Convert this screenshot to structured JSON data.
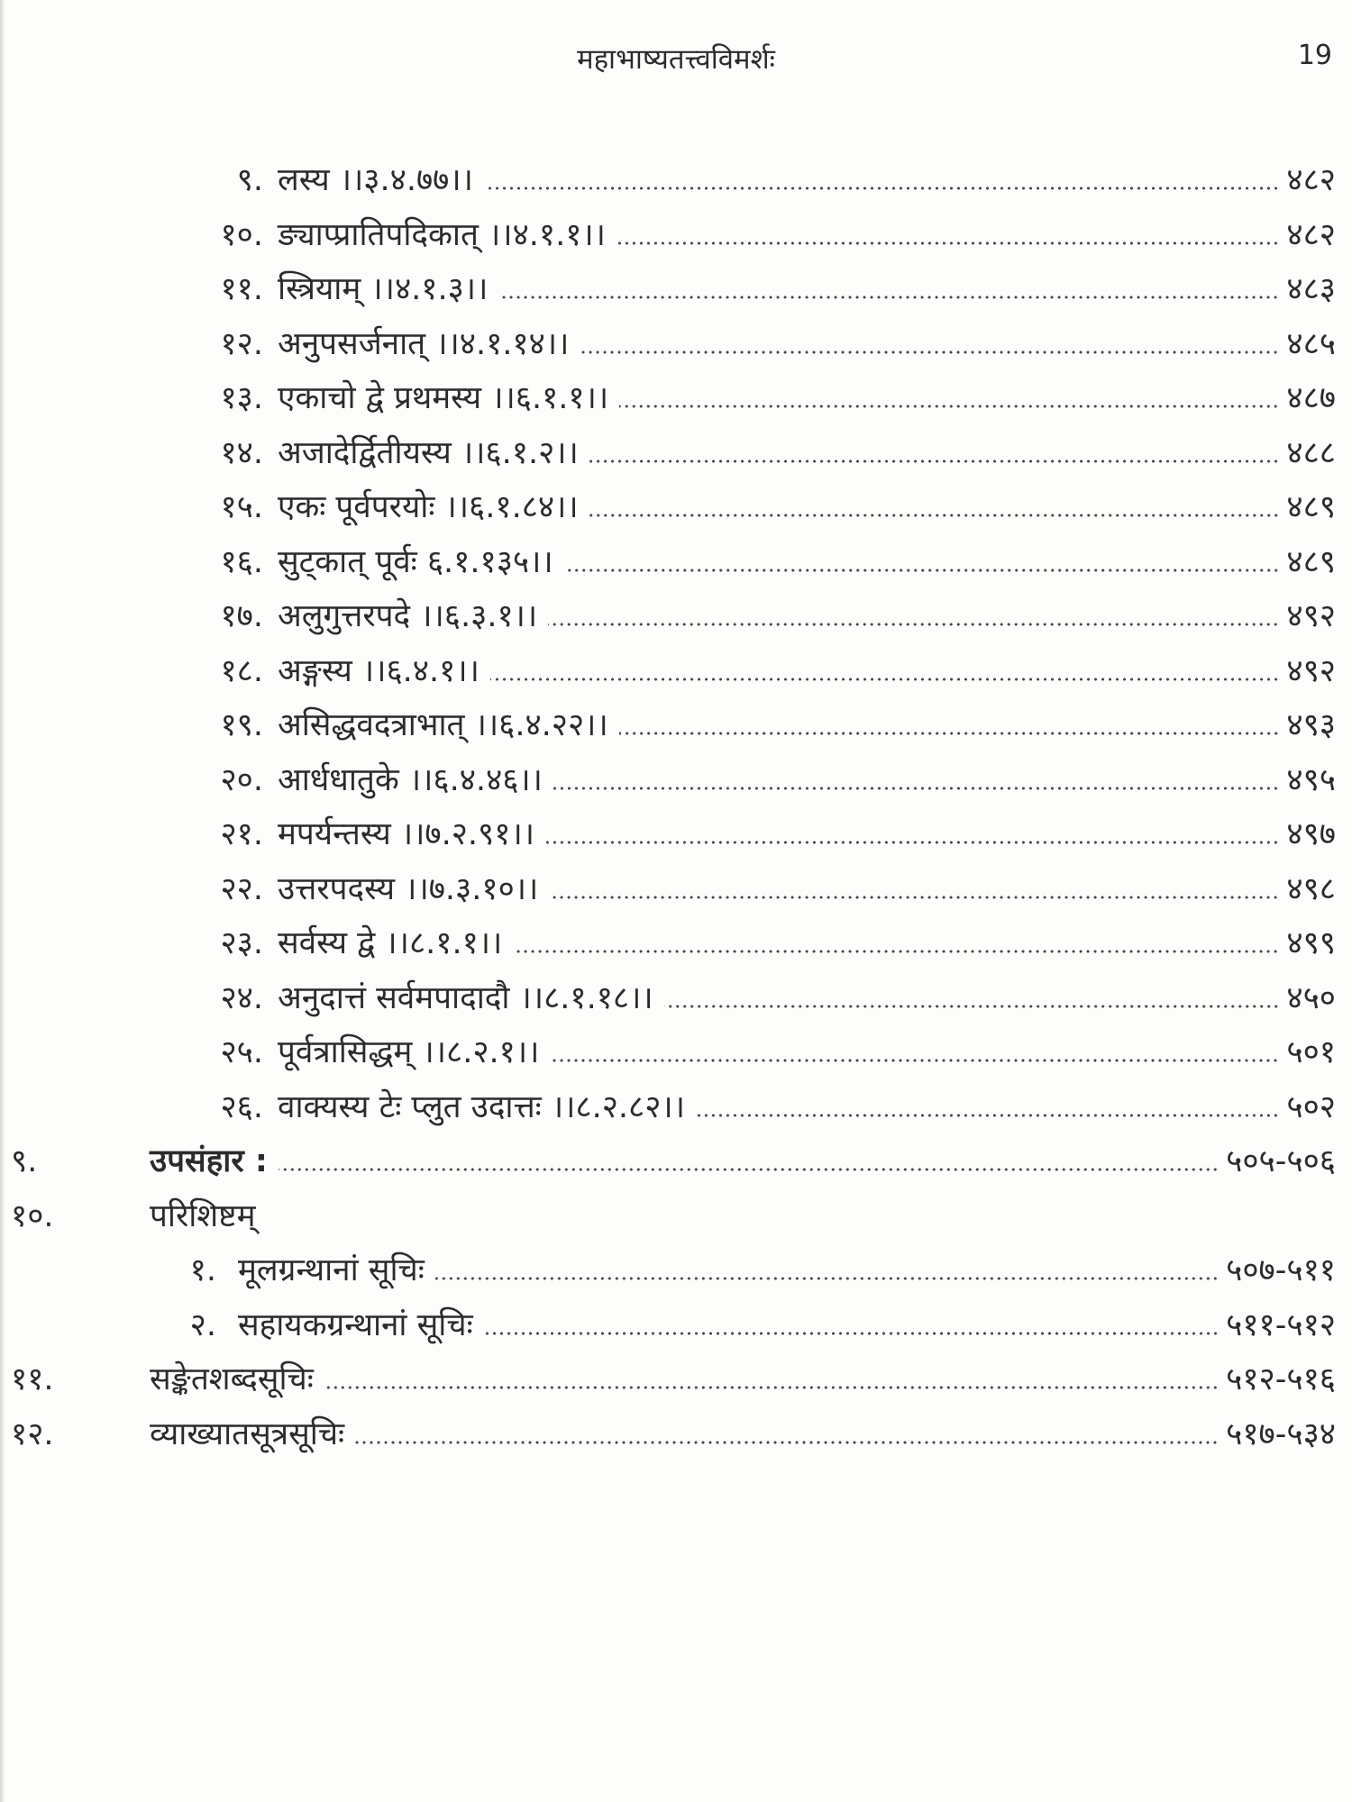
{
  "header": {
    "title": "महाभाष्यतत्त्वविमर्शः",
    "page_number": "19"
  },
  "entries": [
    {
      "level": "sub",
      "num": "९.",
      "text": "लस्य ।।३.४.७७।।",
      "page": "४८२"
    },
    {
      "level": "sub",
      "num": "१०.",
      "text": "ङ्याप्प्रातिपदिकात् ।।४.१.१।।",
      "page": "४८२"
    },
    {
      "level": "sub",
      "num": "११.",
      "text": "स्त्रियाम् ।।४.१.३।।",
      "page": "४८३"
    },
    {
      "level": "sub",
      "num": "१२.",
      "text": "अनुपसर्जनात् ।।४.१.१४।।",
      "page": "४८५"
    },
    {
      "level": "sub",
      "num": "१३.",
      "text": "एकाचो द्वे प्रथमस्य ।।६.१.१।।",
      "page": "४८७"
    },
    {
      "level": "sub",
      "num": "१४.",
      "text": "अजादेर्द्वितीयस्य ।।६.१.२।।",
      "page": "४८८"
    },
    {
      "level": "sub",
      "num": "१५.",
      "text": "एकः पूर्वपरयोः ।।६.१.८४।।",
      "page": "४८९"
    },
    {
      "level": "sub",
      "num": "१६.",
      "text": "सुट्कात् पूर्वः ६.१.१३५।।",
      "page": "४८९"
    },
    {
      "level": "sub",
      "num": "१७.",
      "text": "अलुगुत्तरपदे ।।६.३.१।।",
      "page": "४९२"
    },
    {
      "level": "sub",
      "num": "१८.",
      "text": "अङ्गस्य ।।६.४.१।।",
      "page": "४९२"
    },
    {
      "level": "sub",
      "num": "१९.",
      "text": "असिद्धवदत्राभात् ।।६.४.२२।।",
      "page": "४९३"
    },
    {
      "level": "sub",
      "num": "२०.",
      "text": "आर्धधातुके ।।६.४.४६।।",
      "page": "४९५"
    },
    {
      "level": "sub",
      "num": "२१.",
      "text": "मपर्यन्तस्य ।।७.२.९१।।",
      "page": "४९७"
    },
    {
      "level": "sub",
      "num": "२२.",
      "text": "उत्तरपदस्य ।।७.३.१०।।",
      "page": "४९८"
    },
    {
      "level": "sub",
      "num": "२३.",
      "text": "सर्वस्य द्वे ।।८.१.१।।",
      "page": "४९९"
    },
    {
      "level": "sub",
      "num": "२४.",
      "text": "अनुदात्तं सर्वमपादादौ ।।८.१.१८।।",
      "page": "४५०"
    },
    {
      "level": "sub",
      "num": "२५.",
      "text": "पूर्वत्रासिद्धम् ।।८.२.१।।",
      "page": "५०१"
    },
    {
      "level": "sub",
      "num": "२६.",
      "text": "वाक्यस्य टेः प्लुत उदात्तः ।।८.२.८२।।",
      "page": "५०२"
    },
    {
      "level": "top",
      "num": "९.",
      "text": "उपसंहार :",
      "page": "५०५-५०६"
    },
    {
      "level": "top-plain",
      "num": "१०.",
      "text": "परिशिष्टम्",
      "page": ""
    },
    {
      "level": "app",
      "num": "१.",
      "text": "मूलग्रन्थानां सूचिः",
      "page": "५०७-५११"
    },
    {
      "level": "app",
      "num": "२.",
      "text": "सहायकग्रन्थानां सूचिः",
      "page": "५११-५१२"
    },
    {
      "level": "top-plain",
      "num": "११.",
      "text": "सङ्केतशब्दसूचिः",
      "page": "५१२-५१६"
    },
    {
      "level": "top-plain",
      "num": "१२.",
      "text": "व्याख्यातसूत्रसूचिः",
      "page": "५१७-५३४"
    }
  ]
}
